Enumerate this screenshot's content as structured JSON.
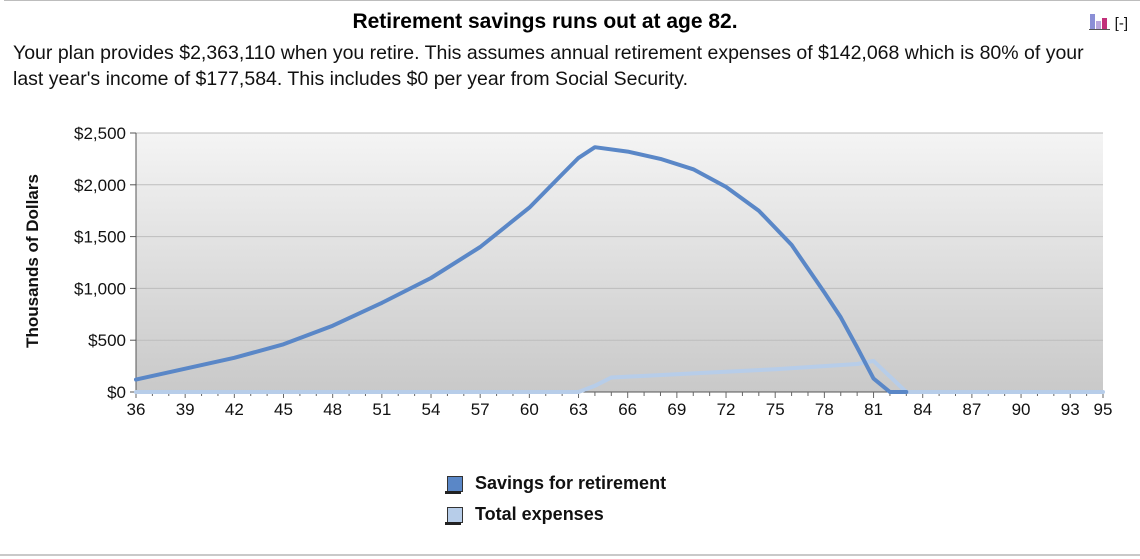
{
  "header": {
    "title": "Retirement savings runs out at age 82.",
    "summary": "Your plan provides $2,363,110 when you retire. This assumes annual retirement expenses of $142,068 which is 80% of your last year's income of $177,584. This includes $0 per year from Social Security.",
    "toggle_label": "[-]"
  },
  "colors": {
    "savings": "#5a87c7",
    "expenses": "#b7cde9",
    "plot_top": "#f4f4f4",
    "plot_bottom": "#c9c9c9",
    "grid": "#bdbdbd"
  },
  "icons": {
    "toggle": "bar-chart-icon"
  },
  "chart_data": {
    "type": "line",
    "title": "Retirement savings runs out at age 82.",
    "ylabel": "Thousands of Dollars",
    "xlabel": "",
    "xlim": [
      36,
      95
    ],
    "ylim": [
      0,
      2500
    ],
    "x_ticks": [
      36,
      39,
      42,
      45,
      48,
      51,
      54,
      57,
      60,
      63,
      66,
      69,
      72,
      75,
      78,
      81,
      84,
      87,
      90,
      93,
      95
    ],
    "y_ticks": [
      0,
      500,
      1000,
      1500,
      2000,
      2500
    ],
    "y_tick_labels": [
      "$0",
      "$500",
      "$1,000",
      "$1,500",
      "$2,000",
      "$2,500"
    ],
    "grid": true,
    "legend_position": "bottom-center",
    "series": [
      {
        "name": "Savings for retirement",
        "x": [
          36,
          39,
          42,
          45,
          48,
          51,
          54,
          57,
          60,
          62,
          63,
          64,
          66,
          68,
          70,
          72,
          74,
          76,
          78,
          79,
          80,
          81,
          82,
          83
        ],
        "values": [
          120,
          225,
          330,
          460,
          640,
          860,
          1100,
          1400,
          1780,
          2100,
          2260,
          2363,
          2320,
          2250,
          2150,
          1980,
          1750,
          1420,
          960,
          720,
          430,
          130,
          0,
          0
        ]
      },
      {
        "name": "Total expenses",
        "x": [
          36,
          63,
          64,
          65,
          70,
          75,
          80,
          81,
          82,
          83,
          95
        ],
        "values": [
          0,
          0,
          60,
          140,
          180,
          220,
          270,
          300,
          150,
          0,
          0
        ]
      }
    ]
  }
}
